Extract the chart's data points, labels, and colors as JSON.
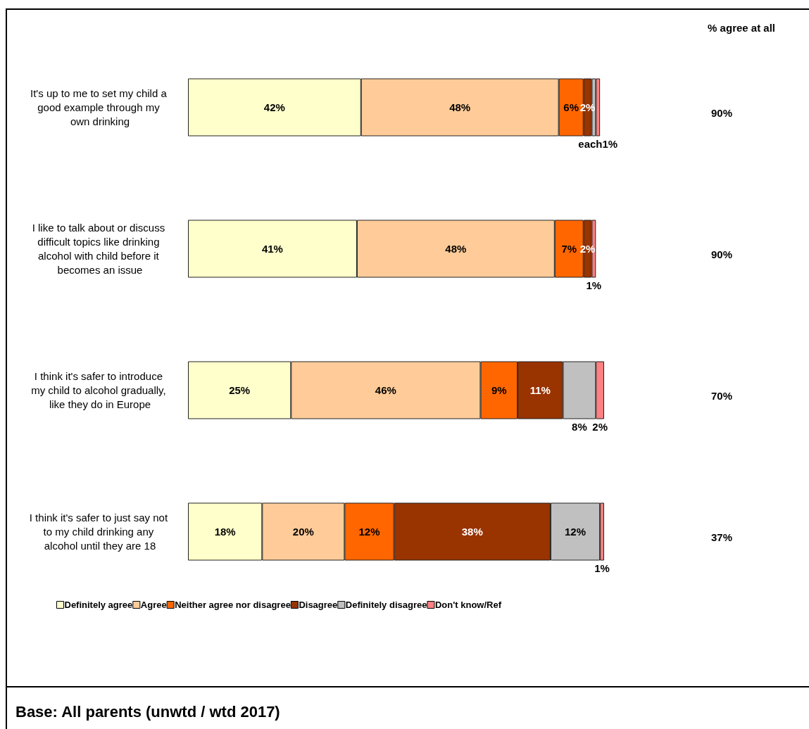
{
  "chart_data": {
    "type": "bar",
    "orientation": "horizontal",
    "stacked": true,
    "categories": [
      "It's up to me to set my child a good example through my own drinking",
      "I like to talk about or discuss difficult topics like drinking alcohol with child before it becomes an issue",
      "I think it's safer to introduce my child to alcohol gradually, like they do in Europe",
      "I think it's safer to just say not to my child drinking any alcohol until they are 18"
    ],
    "series": [
      {
        "name": "Definitely agree",
        "color": "#ffffcc",
        "values": [
          42,
          41,
          25,
          18
        ],
        "value_labels": [
          "42%",
          "41%",
          "25%",
          "18%"
        ]
      },
      {
        "name": "Agree",
        "color": "#ffcc99",
        "values": [
          48,
          48,
          46,
          20
        ],
        "value_labels": [
          "48%",
          "48%",
          "46%",
          "20%"
        ]
      },
      {
        "name": "Neither agree nor disagree",
        "color": "#ff6600",
        "values": [
          6,
          7,
          9,
          12
        ],
        "value_labels": [
          "6%",
          "7%",
          "9%",
          "12%"
        ]
      },
      {
        "name": "Disagree",
        "color": "#993300",
        "values": [
          2,
          2,
          11,
          38
        ],
        "value_labels": [
          "2%",
          "2%",
          "11%",
          "38%"
        ]
      },
      {
        "name": "Definitely disagree",
        "color": "#c0c0c0",
        "values": [
          1,
          null,
          8,
          12
        ],
        "value_labels": [
          null,
          null,
          "8%",
          "12%"
        ]
      },
      {
        "name": "Don't know/Ref",
        "color": "#ff8080",
        "values": [
          1,
          1,
          2,
          1
        ],
        "value_labels": [
          "each1%",
          "1%",
          "2%",
          "1%"
        ]
      }
    ],
    "xlim": [
      0,
      101
    ],
    "tick_labels": "y",
    "grid": false,
    "legend": "bottom",
    "annotations": [
      "% agree at all",
      "90%",
      "90%",
      "70%",
      "37%",
      "Base: All parents (unwtd / wtd 2017)"
    ]
  }
}
